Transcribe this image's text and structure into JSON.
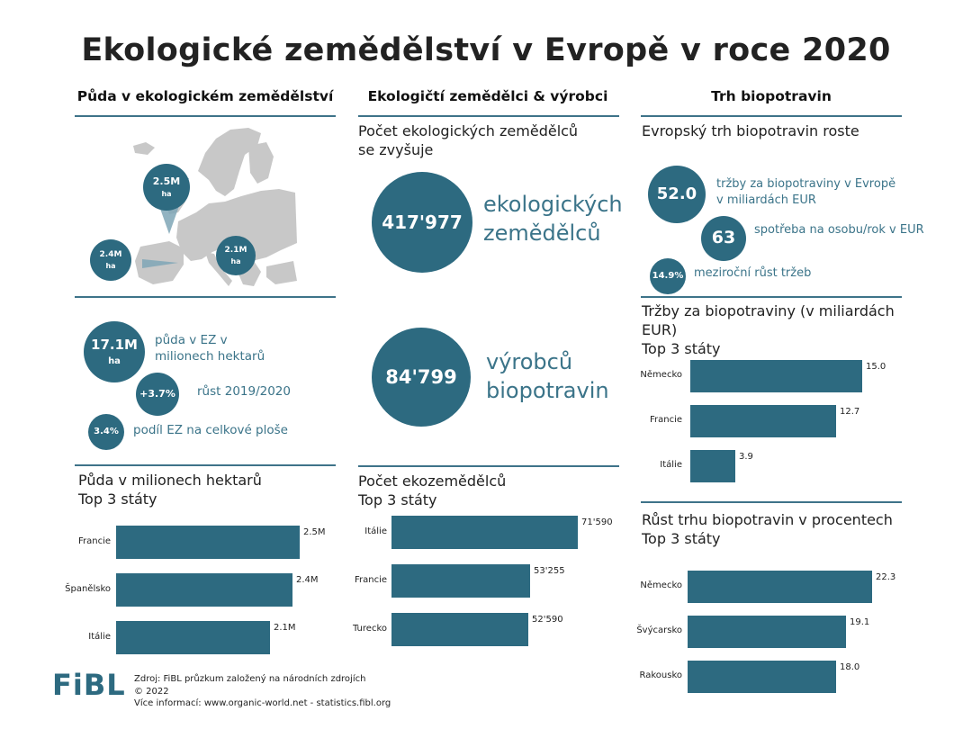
{
  "title": "Ekologické zemědělství v Evropě v roce 2020",
  "columns": {
    "land": "Půda v ekologickém zemědělství",
    "farmers": "Ekologičtí zemědělci & výrobci",
    "market": "Trh biopotravin"
  },
  "map": {
    "markers": [
      {
        "value": "2.5M",
        "unit": "ha"
      },
      {
        "value": "2.4M",
        "unit": "ha"
      },
      {
        "value": "2.1M",
        "unit": "ha"
      }
    ]
  },
  "land_stats": {
    "area": {
      "value": "17.1M",
      "unit": "ha",
      "label": "půda v EZ v milionech hektarů"
    },
    "growth": {
      "value": "+3.7%",
      "label": "růst 2019/2020"
    },
    "share": {
      "value": "3.4%",
      "label": "podíl EZ na celkové ploše"
    }
  },
  "farmer_stats": {
    "heading": "Počet ekologických zemědělců se zvyšuje",
    "farmers": {
      "value": "417'977",
      "label_line1": "ekologických",
      "label_line2": "zemědělců"
    },
    "processors": {
      "value": "84'799",
      "label_line1": "výrobců",
      "label_line2": "biopotravin"
    }
  },
  "market_stats": {
    "heading": "Evropský trh biopotravin roste",
    "sales": {
      "value": "52.0",
      "label": "tržby za biopotraviny v Evropě v miliardách EUR"
    },
    "per_capita": {
      "value": "63",
      "label": "spotřeba na osobu/rok v EUR"
    },
    "growth": {
      "value": "14.9%",
      "label": "meziroční růst tržeb"
    }
  },
  "chart_data": [
    {
      "type": "bar",
      "title_line1": "Půda v milionech hektarů",
      "title_line2": "Top 3 státy",
      "categories": [
        "Francie",
        "Španělsko",
        "Itálie"
      ],
      "values": [
        2.5,
        2.4,
        2.1
      ],
      "value_labels": [
        "2.5M",
        "2.4M",
        "2.1M"
      ]
    },
    {
      "type": "bar",
      "title_line1": "Počet ekozemědělců",
      "title_line2": "Top 3 státy",
      "categories": [
        "Itálie",
        "Francie",
        "Turecko"
      ],
      "values": [
        71590,
        53255,
        52590
      ],
      "value_labels": [
        "71'590",
        "53'255",
        "52'590"
      ]
    },
    {
      "type": "bar",
      "title_line1": "Tržby za biopotraviny (v miliardách EUR)",
      "title_line2": "Top 3 státy",
      "categories": [
        "Německo",
        "Francie",
        "Itálie"
      ],
      "values": [
        15.0,
        12.7,
        3.9
      ],
      "value_labels": [
        "15.0",
        "12.7",
        "3.9"
      ]
    },
    {
      "type": "bar",
      "title_line1": "Růst trhu biopotravin v procentech",
      "title_line2": "Top 3 státy",
      "categories": [
        "Německo",
        "Švýcarsko",
        "Rakousko"
      ],
      "values": [
        22.3,
        19.1,
        18.0
      ],
      "value_labels": [
        "22.3",
        "19.1",
        "18.0"
      ]
    }
  ],
  "footer": {
    "logo": "FiBL",
    "source": "Zdroj: FiBL průzkum založený na národních zdrojích",
    "copyright": "© 2022",
    "more": "Více informací: www.organic-world.net - statistics.fibl.org"
  },
  "colors": {
    "accent": "#2d6a80",
    "text_teal": "#3b7489",
    "map_grey": "#c8c8c8"
  }
}
